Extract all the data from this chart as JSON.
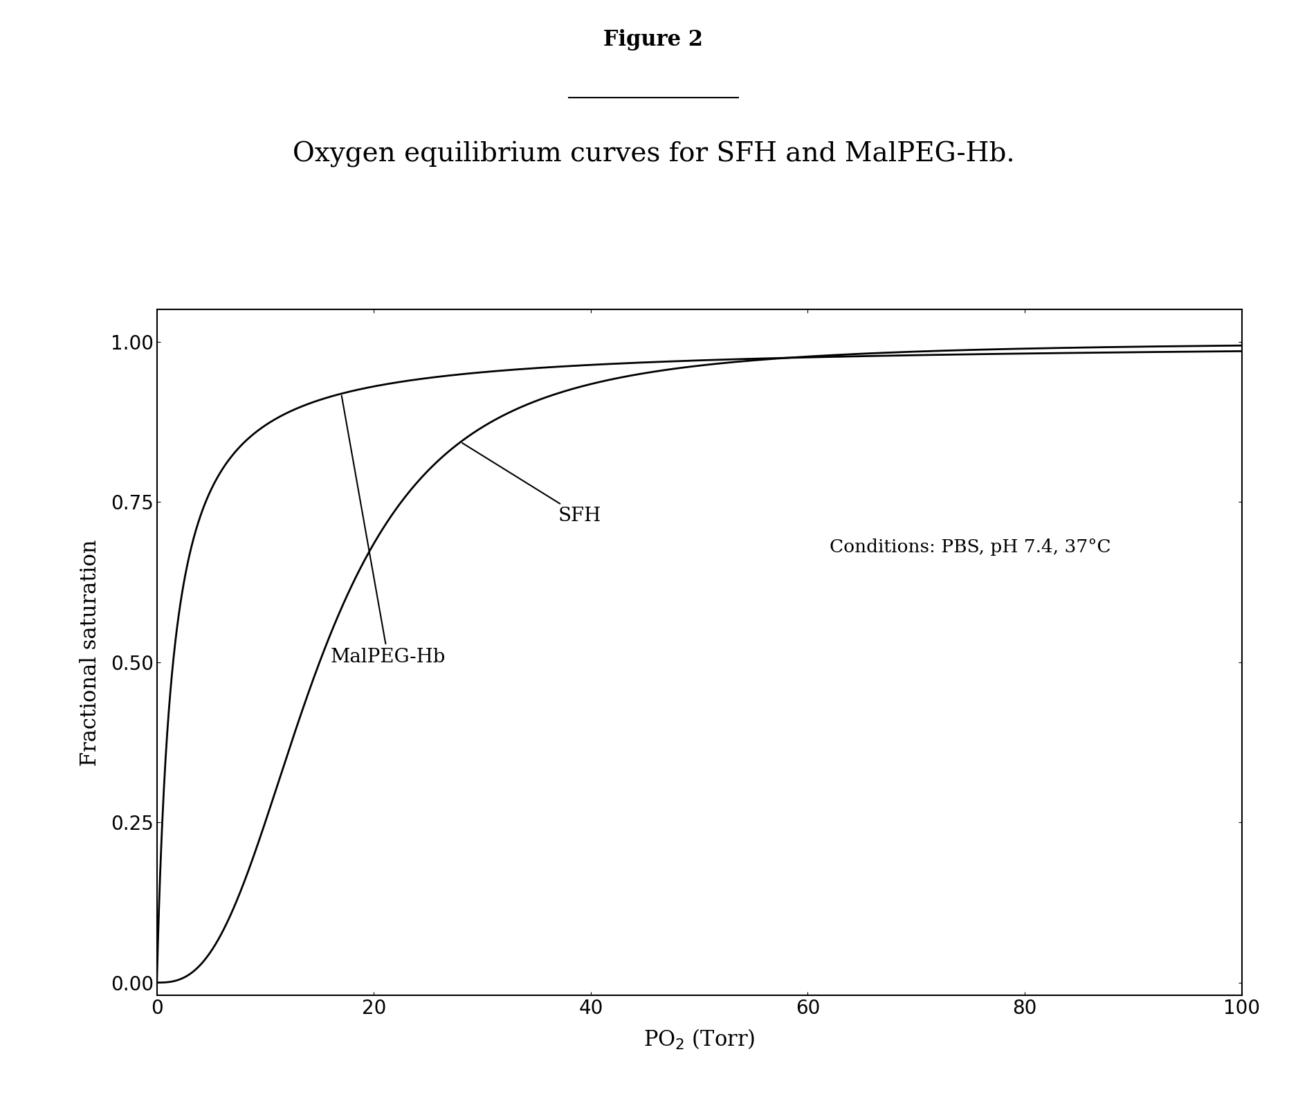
{
  "figure_title": "Figure 2",
  "subtitle": "Oxygen equilibrium curves for SFH and MalPEG-Hb.",
  "xlabel": "PO$_2$ (Torr)",
  "ylabel": "Fractional saturation",
  "conditions_text": "Conditions: PBS, pH 7.4, 37°C",
  "xlim": [
    0,
    100
  ],
  "ylim": [
    -0.02,
    1.05
  ],
  "xticks": [
    0,
    20,
    40,
    60,
    80,
    100
  ],
  "yticks": [
    0,
    0.25,
    0.5,
    0.75,
    1
  ],
  "sfh_label": "SFH",
  "malpeg_label": "MalPEG-Hb",
  "sfh_p50": 15.0,
  "sfh_n": 2.7,
  "malpeg_p50": 1.5,
  "malpeg_n": 1.0,
  "line_color": "#000000",
  "bg_color": "#ffffff",
  "title_fontsize": 22,
  "subtitle_fontsize": 28,
  "axis_label_fontsize": 22,
  "tick_fontsize": 20,
  "annotation_fontsize": 20
}
